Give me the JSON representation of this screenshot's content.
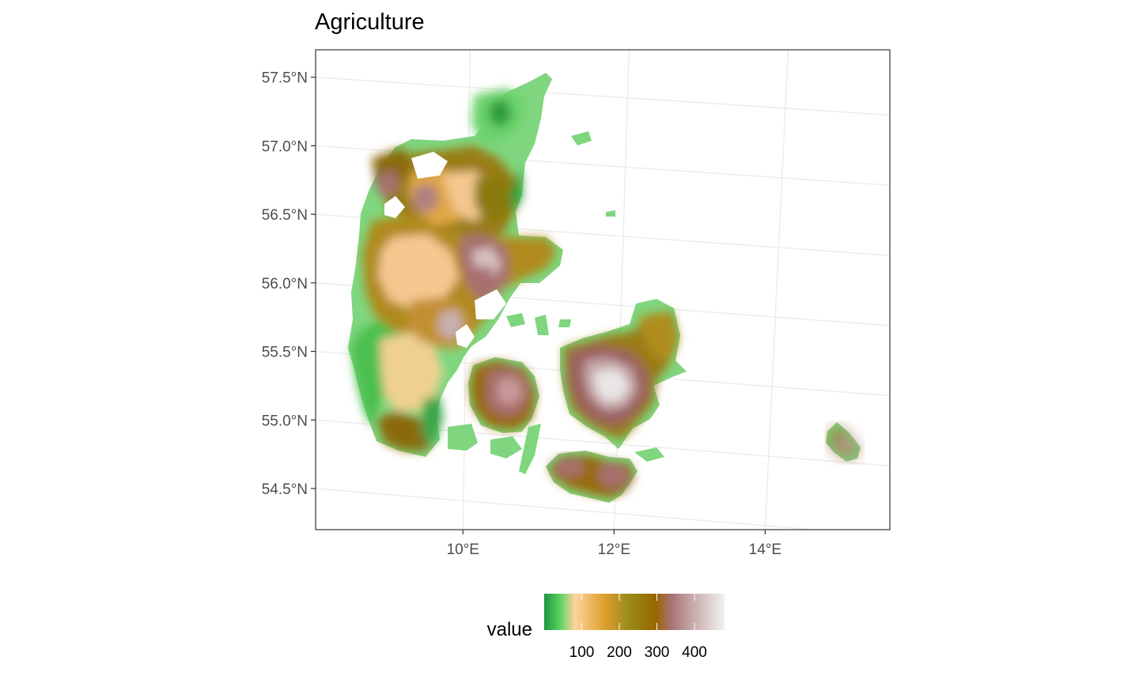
{
  "title": "Agriculture",
  "map": {
    "type": "raster",
    "region": "Denmark",
    "panel_background": "#ffffff",
    "grid": true,
    "grid_color": "#ebebeb",
    "border_color": "#333333",
    "x_axis": {
      "ticks": [
        {
          "value": 10,
          "label": "10°E"
        },
        {
          "value": 12,
          "label": "12°E"
        },
        {
          "value": 14,
          "label": "14°E"
        }
      ],
      "range": [
        8.05,
        15.65
      ]
    },
    "y_axis": {
      "ticks": [
        {
          "value": 57.5,
          "label": "57.5°N"
        },
        {
          "value": 57.0,
          "label": "57.0°N"
        },
        {
          "value": 56.5,
          "label": "56.5°N"
        },
        {
          "value": 56.0,
          "label": "56.0°N"
        },
        {
          "value": 55.5,
          "label": "55.5°N"
        },
        {
          "value": 55.0,
          "label": "55.0°N"
        },
        {
          "value": 54.5,
          "label": "54.5°N"
        }
      ],
      "range": [
        54.2,
        57.7
      ]
    }
  },
  "legend": {
    "title": "value",
    "position": "bottom",
    "labels": [
      "100",
      "200",
      "300",
      "400"
    ],
    "label_values": [
      100,
      200,
      300,
      400
    ],
    "range": [
      0,
      480
    ],
    "colors": [
      "#1a9641",
      "#5fd35f",
      "#fdd49e",
      "#e0a030",
      "#9a8a1a",
      "#996600",
      "#a87070",
      "#c0a0a0",
      "#f2f2f2"
    ]
  }
}
